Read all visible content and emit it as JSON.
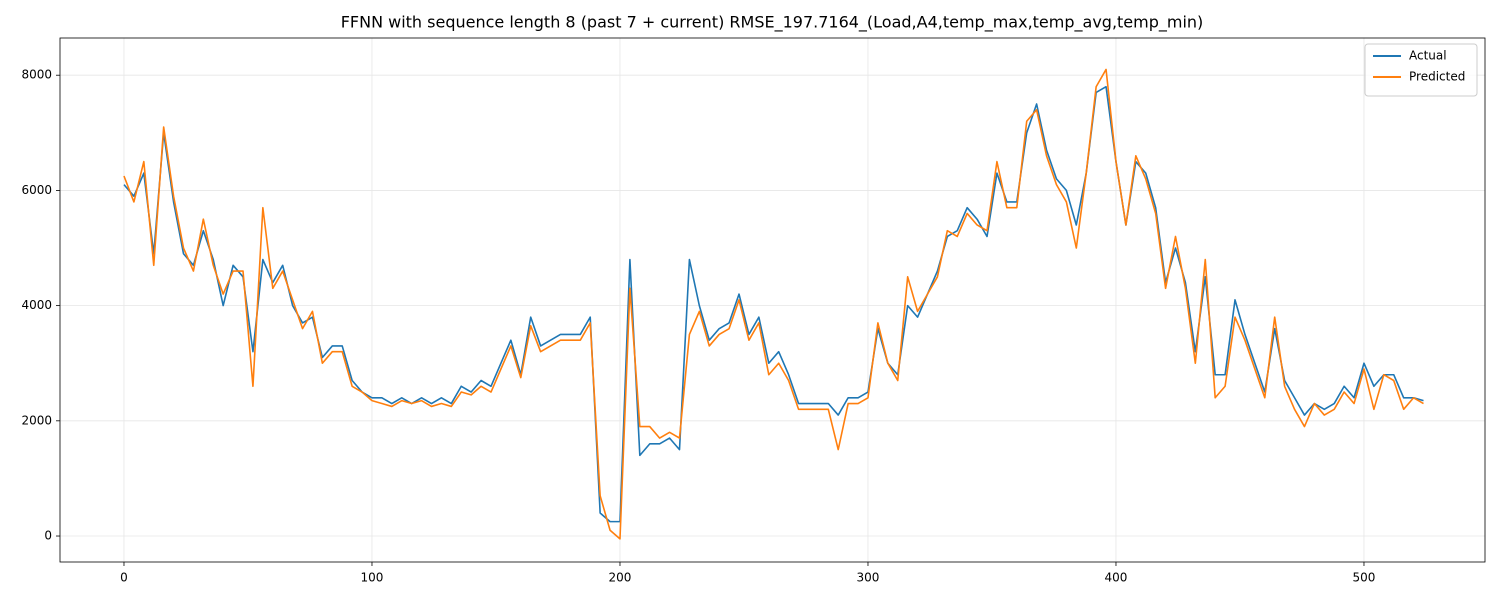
{
  "chart_data": {
    "type": "line",
    "title": "FFNN with sequence length 8 (past 7 + current) RMSE_197.7164_(Load,A4,temp_max,temp_avg,temp_min)",
    "x": [
      0,
      4,
      8,
      12,
      16,
      20,
      24,
      28,
      32,
      36,
      40,
      44,
      48,
      52,
      56,
      60,
      64,
      68,
      72,
      76,
      80,
      84,
      88,
      92,
      96,
      100,
      104,
      108,
      112,
      116,
      120,
      124,
      128,
      132,
      136,
      140,
      144,
      148,
      152,
      156,
      160,
      164,
      168,
      172,
      176,
      180,
      184,
      188,
      192,
      196,
      200,
      204,
      208,
      212,
      216,
      220,
      224,
      228,
      232,
      236,
      240,
      244,
      248,
      252,
      256,
      260,
      264,
      268,
      272,
      276,
      280,
      284,
      288,
      292,
      296,
      300,
      304,
      308,
      312,
      316,
      320,
      324,
      328,
      332,
      336,
      340,
      344,
      348,
      352,
      356,
      360,
      364,
      368,
      372,
      376,
      380,
      384,
      388,
      392,
      396,
      400,
      404,
      408,
      412,
      416,
      420,
      424,
      428,
      432,
      436,
      440,
      444,
      448,
      452,
      456,
      460,
      464,
      468,
      472,
      476,
      480,
      484,
      488,
      492,
      496,
      500,
      504,
      508,
      512,
      516,
      520,
      524
    ],
    "series": [
      {
        "name": "Actual",
        "color": "#1f77b4",
        "values": [
          6100,
          5900,
          6300,
          4900,
          7000,
          5800,
          4900,
          4700,
          5300,
          4800,
          4000,
          4700,
          4500,
          3200,
          4800,
          4400,
          4700,
          4000,
          3700,
          3800,
          3100,
          3300,
          3300,
          2700,
          2500,
          2400,
          2400,
          2300,
          2400,
          2300,
          2400,
          2300,
          2400,
          2300,
          2600,
          2500,
          2700,
          2600,
          3000,
          3400,
          2800,
          3800,
          3300,
          3400,
          3500,
          3500,
          3500,
          3800,
          400,
          250,
          250,
          4800,
          1400,
          1600,
          1600,
          1700,
          1500,
          4800,
          4000,
          3400,
          3600,
          3700,
          4200,
          3500,
          3800,
          3000,
          3200,
          2800,
          2300,
          2300,
          2300,
          2300,
          2100,
          2400,
          2400,
          2500,
          3600,
          3000,
          2800,
          4000,
          3800,
          4200,
          4600,
          5200,
          5300,
          5700,
          5500,
          5200,
          6300,
          5800,
          5800,
          7000,
          7500,
          6700,
          6200,
          6000,
          5400,
          6300,
          7700,
          7800,
          6500,
          5400,
          6500,
          6300,
          5700,
          4400,
          5000,
          4400,
          3200,
          4500,
          2800,
          2800,
          4100,
          3500,
          3000,
          2500,
          3600,
          2700,
          2400,
          2100,
          2300,
          2200,
          2300,
          2600,
          2400,
          3000,
          2600,
          2800,
          2800,
          2400,
          2400,
          2350
        ]
      },
      {
        "name": "Predicted",
        "color": "#ff7f0e",
        "values": [
          6250,
          5800,
          6500,
          4700,
          7100,
          5900,
          5000,
          4600,
          5500,
          4700,
          4200,
          4600,
          4600,
          2600,
          5700,
          4300,
          4600,
          4100,
          3600,
          3900,
          3000,
          3200,
          3200,
          2600,
          2500,
          2350,
          2300,
          2250,
          2350,
          2300,
          2350,
          2250,
          2300,
          2250,
          2500,
          2450,
          2600,
          2500,
          2900,
          3300,
          2750,
          3650,
          3200,
          3300,
          3400,
          3400,
          3400,
          3700,
          700,
          100,
          -50,
          4300,
          1900,
          1900,
          1700,
          1800,
          1700,
          3500,
          3900,
          3300,
          3500,
          3600,
          4100,
          3400,
          3700,
          2800,
          3000,
          2700,
          2200,
          2200,
          2200,
          2200,
          1500,
          2300,
          2300,
          2400,
          3700,
          3000,
          2700,
          4500,
          3900,
          4200,
          4500,
          5300,
          5200,
          5600,
          5400,
          5300,
          6500,
          5700,
          5700,
          7200,
          7400,
          6600,
          6100,
          5800,
          5000,
          6300,
          7800,
          8100,
          6500,
          5400,
          6600,
          6200,
          5600,
          4300,
          5200,
          4300,
          3000,
          4800,
          2400,
          2600,
          3800,
          3400,
          2900,
          2400,
          3800,
          2600,
          2200,
          1900,
          2300,
          2100,
          2200,
          2500,
          2300,
          2900,
          2200,
          2800,
          2700,
          2200,
          2400,
          2300
        ]
      }
    ],
    "xlim": [
      -25.8,
      548.8
    ],
    "ylim": [
      -451,
      8646
    ],
    "xticks": [
      0,
      100,
      200,
      300,
      400,
      500
    ],
    "yticks": [
      0,
      2000,
      4000,
      6000,
      8000
    ],
    "grid": true,
    "legend": "upper right"
  }
}
